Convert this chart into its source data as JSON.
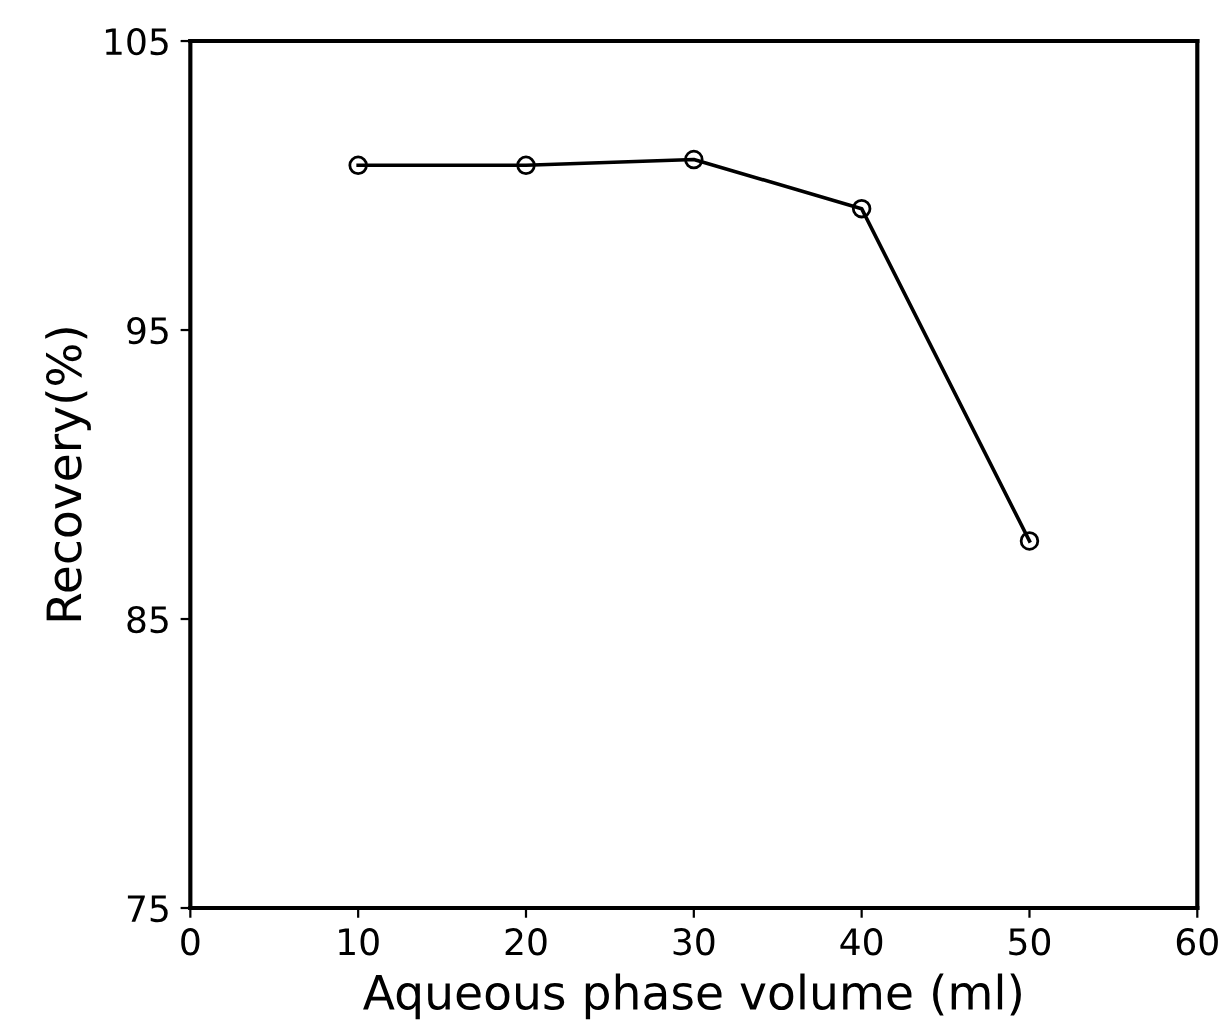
{
  "chart_data": {
    "type": "line",
    "xlabel": "Aqueous phase volume (ml)",
    "ylabel": "Recovery(%)",
    "x": [
      10,
      20,
      30,
      40,
      50
    ],
    "series": [
      {
        "color": "#000000",
        "values": [
          100.7,
          100.7,
          100.9,
          99.2,
          87.7
        ]
      }
    ],
    "xlim": [
      0,
      60
    ],
    "xticks": [
      0,
      10,
      20,
      30,
      40,
      50,
      60
    ],
    "ylim": [
      75,
      105
    ],
    "yticks": [
      75,
      85,
      95,
      105
    ],
    "marker": "circle",
    "line_style": "solid",
    "grid": false,
    "legend": false
  }
}
